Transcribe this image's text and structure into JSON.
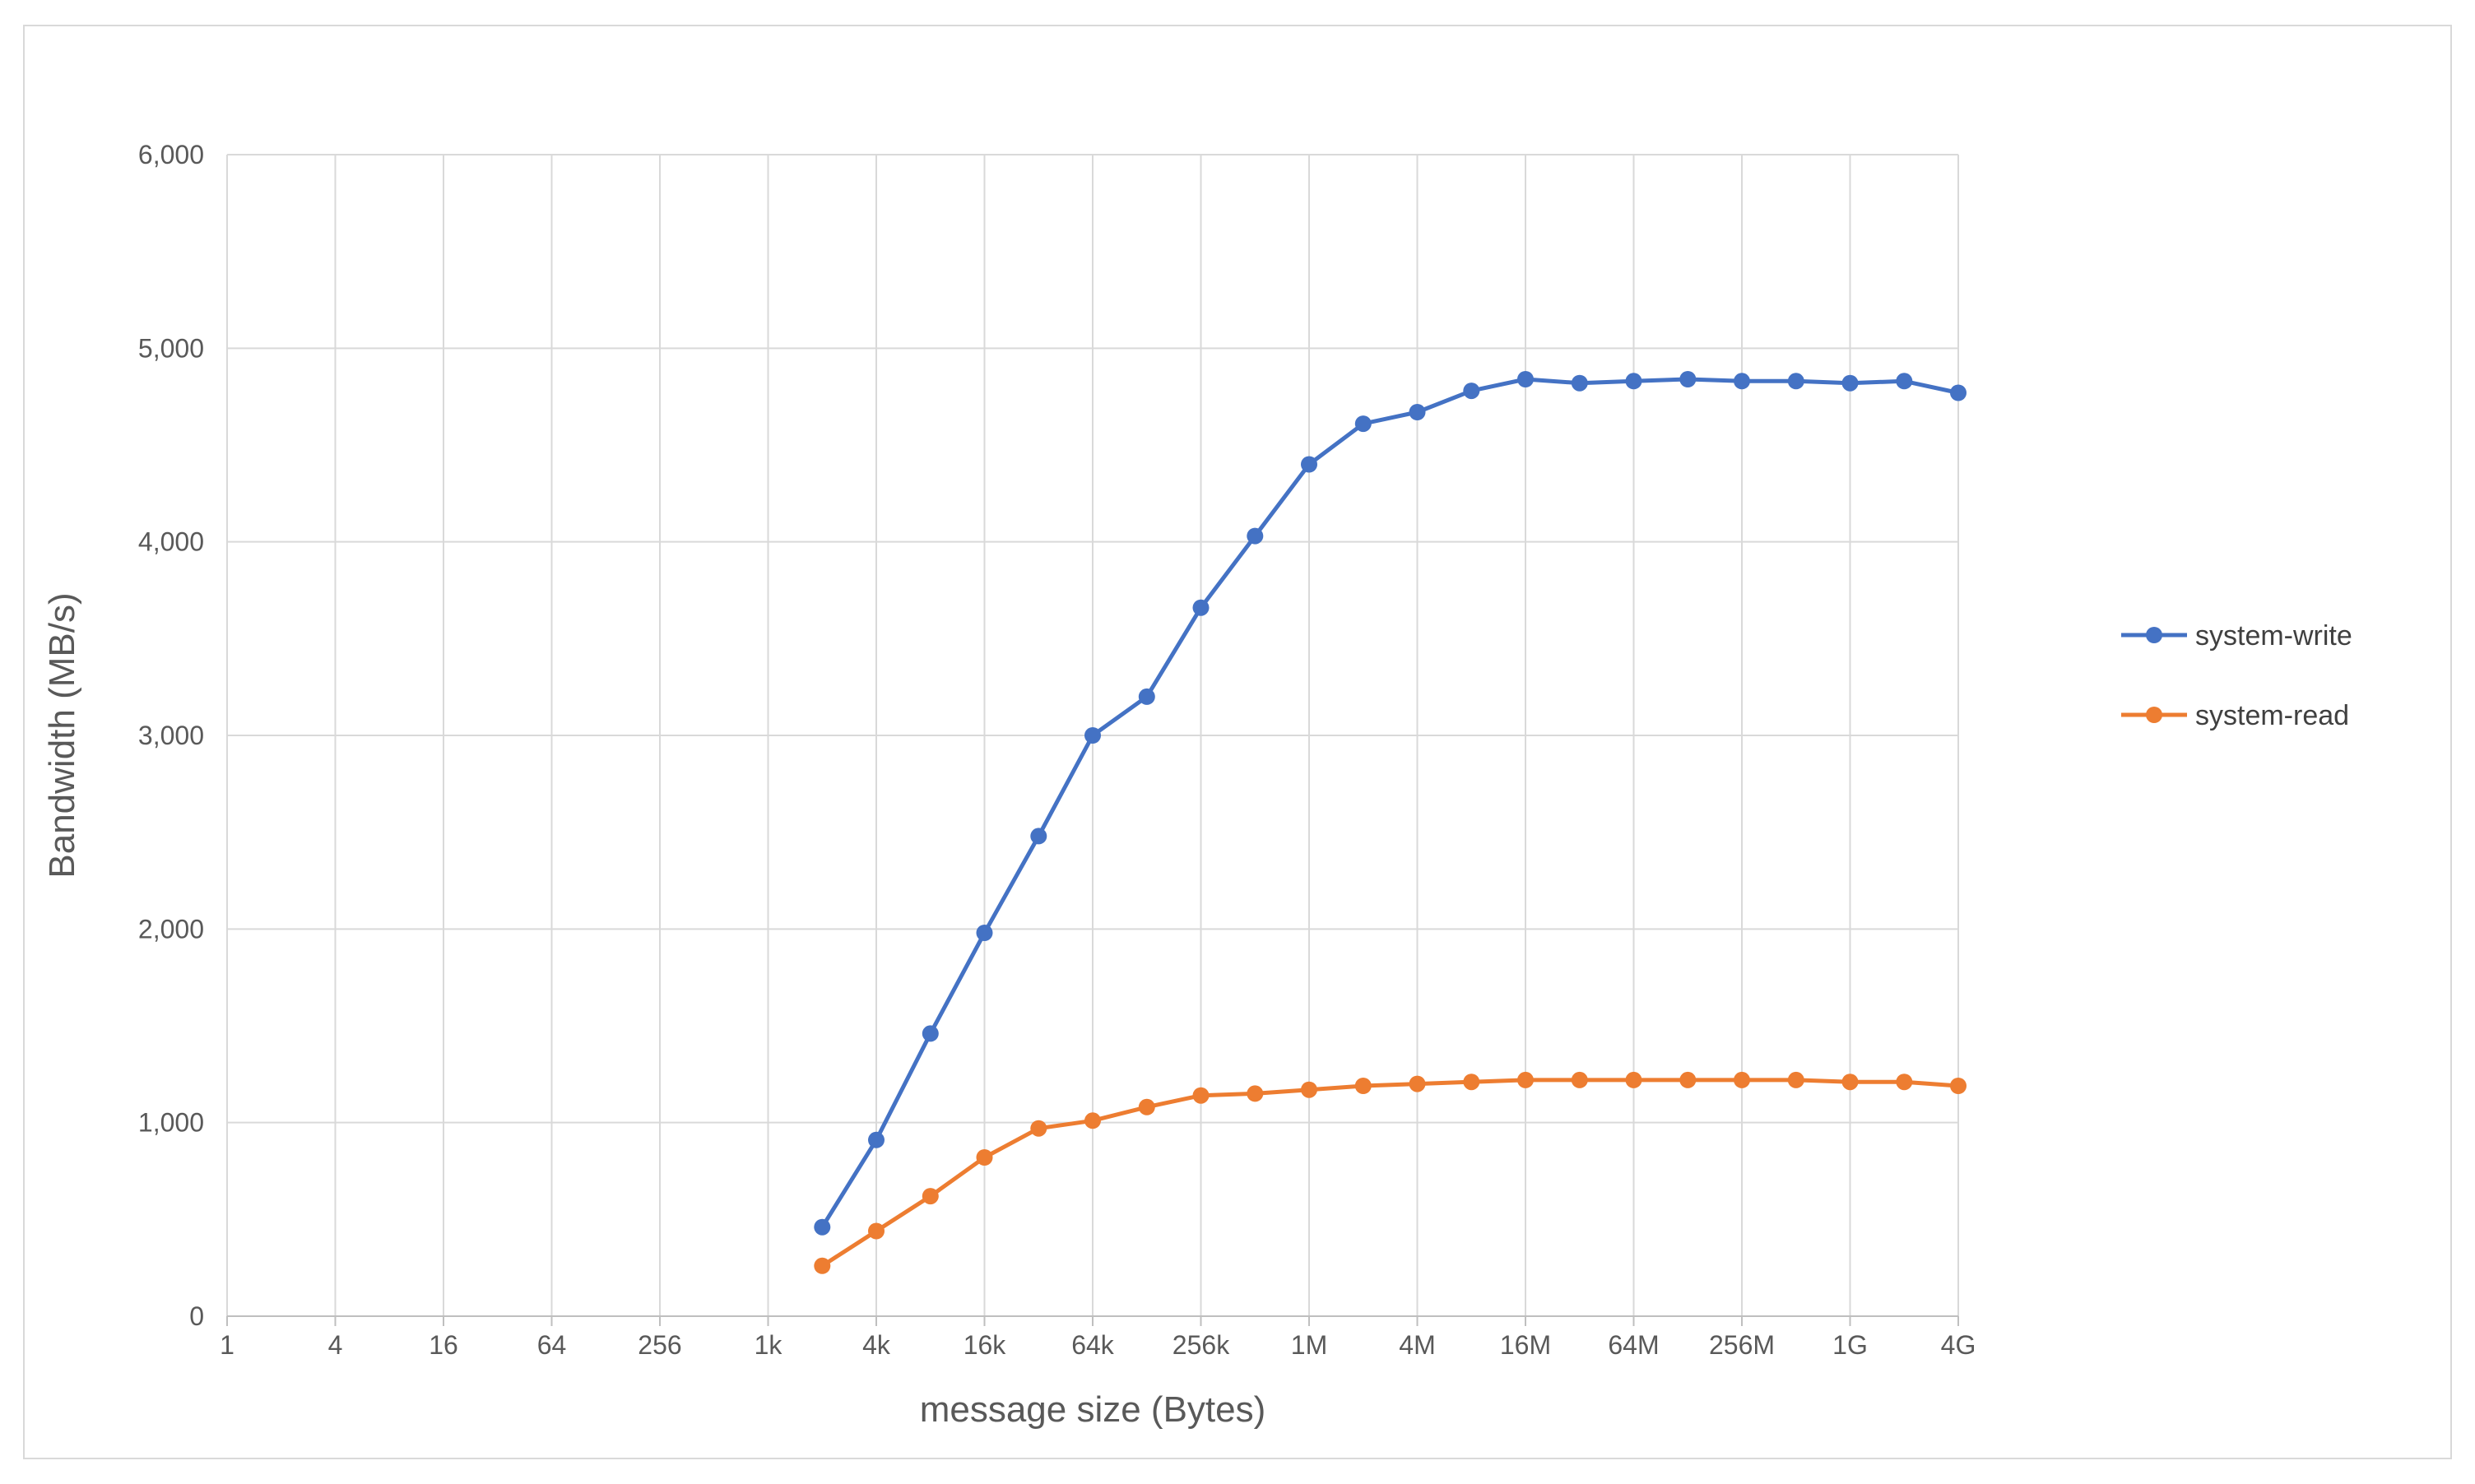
{
  "chart_data": {
    "type": "line",
    "title": "",
    "xlabel": "message size (Bytes)",
    "ylabel": "Bandwidth (MB/s)",
    "x_scale": "log2",
    "x_tick_labels": [
      "1",
      "4",
      "16",
      "64",
      "256",
      "1k",
      "4k",
      "16k",
      "64k",
      "256k",
      "1M",
      "4M",
      "16M",
      "64M",
      "256M",
      "1G",
      "4G"
    ],
    "y_tick_labels": [
      "0",
      "1,000",
      "2,000",
      "3,000",
      "4,000",
      "5,000",
      "6,000"
    ],
    "ylim": [
      0,
      6000
    ],
    "grid": true,
    "legend_position": "right",
    "x": [
      "2k",
      "4k",
      "8k",
      "16k",
      "32k",
      "64k",
      "128k",
      "256k",
      "512k",
      "1M",
      "2M",
      "4M",
      "8M",
      "16M",
      "32M",
      "64M",
      "128M",
      "256M",
      "512M",
      "1G",
      "2G",
      "4G"
    ],
    "series": [
      {
        "name": "system-write",
        "color": "#4472c4",
        "values": [
          460,
          910,
          1460,
          1980,
          2480,
          3000,
          3200,
          3660,
          4030,
          4400,
          4610,
          4670,
          4780,
          4840,
          4820,
          4830,
          4840,
          4830,
          4830,
          4820,
          4830,
          4770
        ]
      },
      {
        "name": "system-read",
        "color": "#ed7d31",
        "values": [
          260,
          440,
          620,
          820,
          970,
          1010,
          1080,
          1140,
          1150,
          1170,
          1190,
          1200,
          1210,
          1220,
          1220,
          1220,
          1220,
          1220,
          1220,
          1210,
          1210,
          1190
        ]
      }
    ]
  }
}
